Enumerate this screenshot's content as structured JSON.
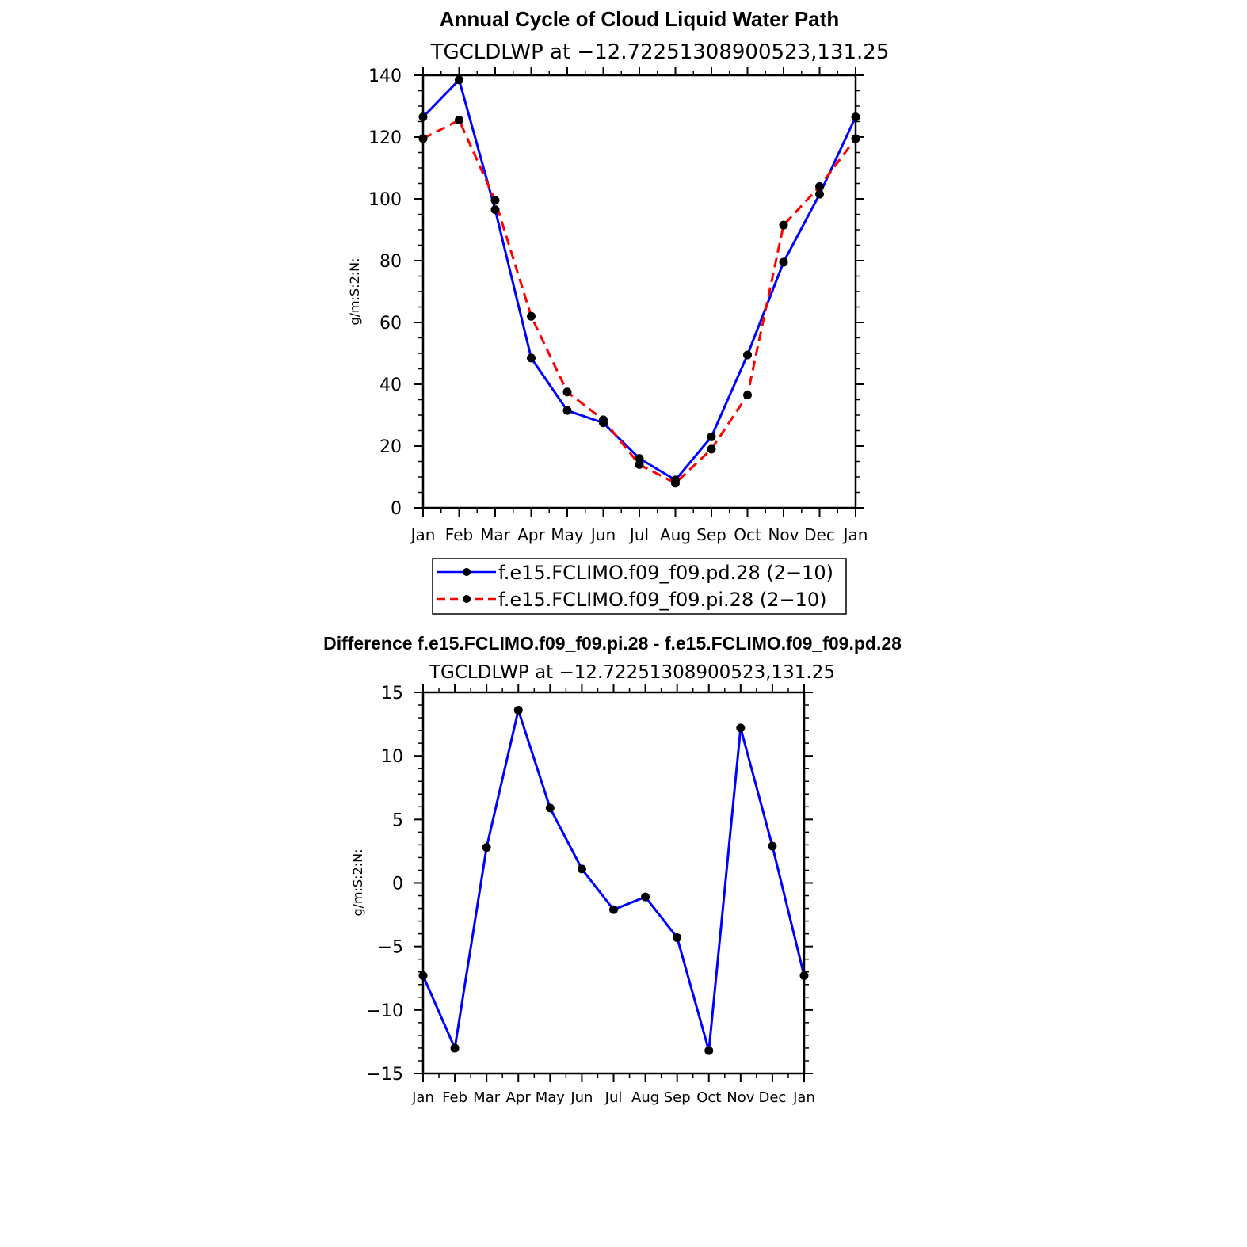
{
  "chart_data": [
    {
      "type": "line",
      "title": "Annual Cycle of Cloud Liquid Water Path",
      "subtitle": "TGCLDLWP at −12.72251308900523,131.25",
      "ylabel": "g/m:S:2:N:",
      "xlabel": "",
      "categories": [
        "Jan",
        "Feb",
        "Mar",
        "Apr",
        "May",
        "Jun",
        "Jul",
        "Aug",
        "Sep",
        "Oct",
        "Nov",
        "Dec",
        "Jan"
      ],
      "ylim": [
        0,
        140
      ],
      "yticks": [
        "0",
        "20",
        "40",
        "60",
        "80",
        "100",
        "120",
        "140"
      ],
      "legend_position": "bottom",
      "series": [
        {
          "name": "f.e15.FCLIMO.f09_f09.pd.28 (2−10)",
          "color": "#0000ff",
          "style": "solid",
          "values": [
            126.5,
            138.5,
            96.5,
            48.5,
            31.5,
            27.5,
            16.0,
            9.0,
            23.0,
            49.5,
            79.5,
            101.5,
            126.5
          ]
        },
        {
          "name": "f.e15.FCLIMO.f09_f09.pi.28 (2−10)",
          "color": "#ff0000",
          "style": "dashed",
          "values": [
            119.5,
            125.5,
            99.5,
            62.0,
            37.5,
            28.5,
            14.0,
            8.0,
            19.0,
            36.5,
            91.5,
            104.0,
            119.5
          ]
        }
      ]
    },
    {
      "type": "line",
      "title": "Difference f.e15.FCLIMO.f09_f09.pi.28 - f.e15.FCLIMO.f09_f09.pd.28",
      "subtitle": "TGCLDLWP at −12.72251308900523,131.25",
      "ylabel": "g/m:S:2:N:",
      "xlabel": "",
      "categories": [
        "Jan",
        "Feb",
        "Mar",
        "Apr",
        "May",
        "Jun",
        "Jul",
        "Aug",
        "Sep",
        "Oct",
        "Nov",
        "Dec",
        "Jan"
      ],
      "ylim": [
        -15,
        15
      ],
      "yticks": [
        "−15",
        "−10",
        "−5",
        "0",
        "5",
        "10",
        "15"
      ],
      "series": [
        {
          "name": "difference",
          "color": "#0000ff",
          "style": "solid",
          "values": [
            -7.3,
            -13.0,
            2.8,
            13.6,
            5.9,
            1.1,
            -2.1,
            -1.1,
            -4.3,
            -13.2,
            12.2,
            2.9,
            -7.3
          ]
        }
      ]
    }
  ]
}
